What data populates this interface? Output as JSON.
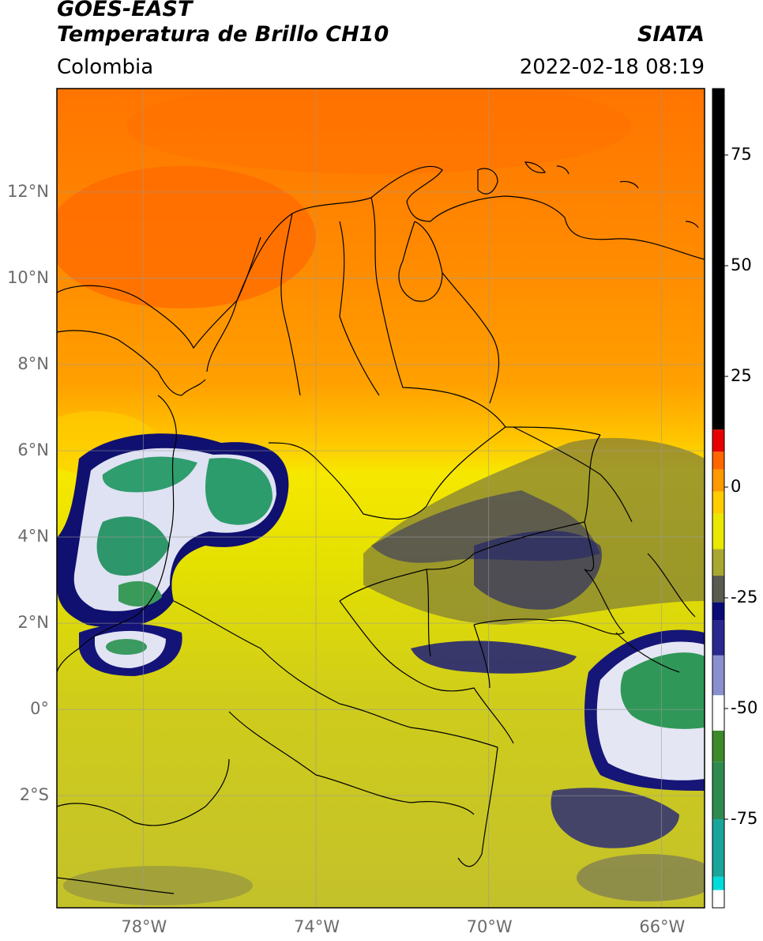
{
  "header": {
    "satellite": "GOES-EAST",
    "product": "Temperatura de Brillo CH10",
    "source": "SIATA",
    "region": "Colombia",
    "timestamp": "2022-02-18 08:19"
  },
  "map": {
    "lon_range": [
      -80,
      -65
    ],
    "lat_range": [
      -4.6,
      14.4
    ],
    "lon_ticks": [
      {
        "value": -78,
        "label": "78°W"
      },
      {
        "value": -74,
        "label": "74°W"
      },
      {
        "value": -70,
        "label": "70°W"
      },
      {
        "value": -66,
        "label": "66°W"
      }
    ],
    "lat_ticks": [
      {
        "value": 12,
        "label": "12°N"
      },
      {
        "value": 10,
        "label": "10°N"
      },
      {
        "value": 8,
        "label": "8°N"
      },
      {
        "value": 6,
        "label": "6°N"
      },
      {
        "value": 4,
        "label": "4°N"
      },
      {
        "value": 2,
        "label": "2°N"
      },
      {
        "value": 0,
        "label": "0°"
      },
      {
        "value": -2,
        "label": "2°S"
      }
    ],
    "grid": true
  },
  "colorbar": {
    "range": [
      -95,
      90
    ],
    "ticks": [
      {
        "value": 75,
        "label": "75"
      },
      {
        "value": 50,
        "label": "50"
      },
      {
        "value": 25,
        "label": "25"
      },
      {
        "value": 0,
        "label": "0"
      },
      {
        "value": -25,
        "label": "-25"
      },
      {
        "value": -50,
        "label": "-50"
      },
      {
        "value": -75,
        "label": "-75"
      }
    ],
    "segments": [
      {
        "from": -95,
        "to": -91,
        "color": "#ffffff"
      },
      {
        "from": -91,
        "to": -88,
        "color": "#00dcdc"
      },
      {
        "from": -88,
        "to": -75,
        "color": "#1aa59a"
      },
      {
        "from": -75,
        "to": -62,
        "color": "#2e8b50"
      },
      {
        "from": -62,
        "to": -55,
        "color": "#3d8a2a"
      },
      {
        "from": -55,
        "to": -47,
        "color": "#ffffff"
      },
      {
        "from": -47,
        "to": -38,
        "color": "#8a8fcf"
      },
      {
        "from": -38,
        "to": -30,
        "color": "#28288f"
      },
      {
        "from": -30,
        "to": -26,
        "color": "#0a0a78"
      },
      {
        "from": -26,
        "to": -20,
        "color": "#5a5a50"
      },
      {
        "from": -20,
        "to": -14,
        "color": "#a8a830"
      },
      {
        "from": -14,
        "to": -6,
        "color": "#e8e800"
      },
      {
        "from": -6,
        "to": -1,
        "color": "#ffcc00"
      },
      {
        "from": -1,
        "to": 4,
        "color": "#ff9900"
      },
      {
        "from": 4,
        "to": 8,
        "color": "#ff6600"
      },
      {
        "from": 8,
        "to": 13,
        "color": "#e80000"
      },
      {
        "from": 13,
        "to": 90,
        "color": "#000000"
      }
    ]
  },
  "colors": {
    "warm_orange": "#ff7a00",
    "orange": "#ff9a00",
    "yellow": "#e6e600",
    "olive": "#c3c129",
    "deep_blue": "#141480",
    "cloud_white": "#e8eaf6",
    "cloud_green": "#2e9a6a",
    "border": "#000000",
    "grid": "#9a9a9a"
  }
}
